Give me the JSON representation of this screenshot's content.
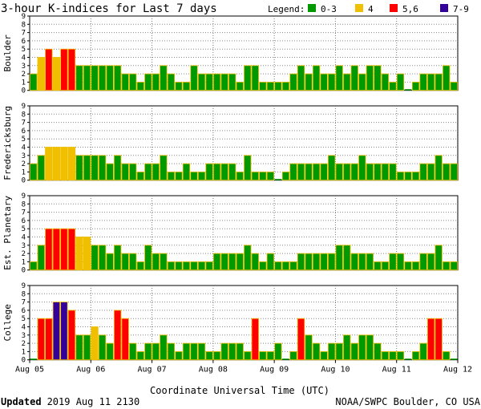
{
  "header": {
    "title": "3-hour K-indices for Last 7 days",
    "legend_label": "Legend:"
  },
  "legend": [
    {
      "label": "0-3",
      "color": "#009900"
    },
    {
      "label": "4",
      "color": "#f0c000"
    },
    {
      "label": "5,6",
      "color": "#ff0000"
    },
    {
      "label": "7-9",
      "color": "#330099"
    }
  ],
  "footer": {
    "updated_label": "Updated",
    "updated_time": "2019 Aug 11 2130",
    "credit": "NOAA/SWPC Boulder, CO USA"
  },
  "chart_data": {
    "type": "bar",
    "xlabel": "Coordinate Universal Time (UTC)",
    "x_ticks": [
      "Aug 05",
      "Aug 06",
      "Aug 07",
      "Aug 08",
      "Aug 09",
      "Aug 10",
      "Aug 11",
      "Aug 12"
    ],
    "ylim": [
      0,
      9
    ],
    "y_ticks": [
      "0",
      "1",
      "2",
      "3",
      "4",
      "5",
      "6",
      "7",
      "8",
      "9"
    ],
    "bar_interval_hours": 3,
    "series": [
      {
        "name": "Boulder",
        "values": [
          2,
          4,
          5,
          4,
          5,
          5,
          3,
          3,
          3,
          3,
          3,
          3,
          2,
          2,
          1,
          2,
          2,
          3,
          2,
          1,
          1,
          3,
          2,
          2,
          2,
          2,
          2,
          1,
          3,
          3,
          1,
          1,
          1,
          1,
          2,
          3,
          2,
          3,
          2,
          2,
          3,
          2,
          3,
          2,
          3,
          3,
          2,
          1,
          2,
          0,
          1,
          2,
          2,
          2,
          3,
          1,
          0
        ]
      },
      {
        "name": "Fredericksburg",
        "values": [
          2,
          3,
          4,
          4,
          4,
          4,
          3,
          3,
          3,
          3,
          2,
          3,
          2,
          2,
          1,
          2,
          2,
          3,
          1,
          1,
          2,
          1,
          1,
          2,
          2,
          2,
          2,
          1,
          3,
          1,
          1,
          1,
          0,
          1,
          2,
          2,
          2,
          2,
          2,
          3,
          2,
          2,
          2,
          3,
          2,
          2,
          2,
          2,
          1,
          1,
          1,
          2,
          2,
          3,
          2,
          2,
          0
        ]
      },
      {
        "name": "Est. Planetary",
        "values": [
          1,
          3,
          5,
          5,
          5,
          5,
          4,
          4,
          3,
          3,
          2,
          3,
          2,
          2,
          1,
          3,
          2,
          2,
          1,
          1,
          1,
          1,
          1,
          1,
          2,
          2,
          2,
          2,
          3,
          2,
          1,
          2,
          1,
          1,
          1,
          2,
          2,
          2,
          2,
          2,
          3,
          3,
          2,
          2,
          2,
          1,
          1,
          2,
          2,
          1,
          1,
          2,
          2,
          3,
          1,
          1,
          0
        ]
      },
      {
        "name": "College",
        "values": [
          0,
          5,
          5,
          7,
          7,
          6,
          3,
          3,
          4,
          3,
          2,
          6,
          5,
          2,
          1,
          2,
          2,
          3,
          2,
          1,
          2,
          2,
          2,
          1,
          1,
          2,
          2,
          2,
          1,
          5,
          1,
          1,
          2,
          0,
          1,
          5,
          3,
          2,
          1,
          2,
          2,
          3,
          2,
          3,
          3,
          2,
          1,
          1,
          1,
          0,
          1,
          2,
          5,
          5,
          1,
          0,
          0
        ]
      }
    ]
  }
}
